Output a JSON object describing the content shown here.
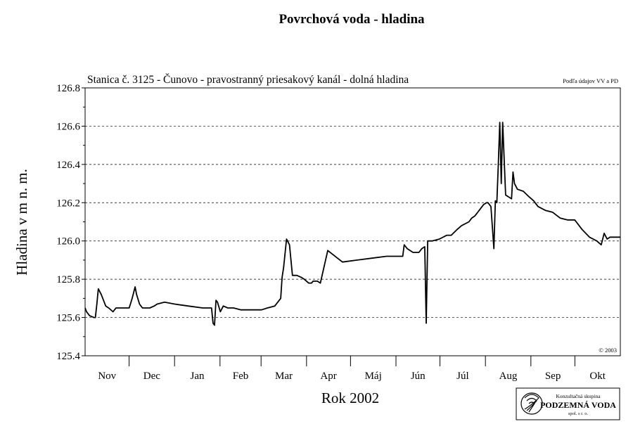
{
  "chart_data": {
    "type": "line",
    "title": "Povrchová voda - hladina",
    "subtitle": "Stanica č. 3125 - Čunovo - pravostranný priesakový kanál - dolná hladina",
    "source_note": "Podľa údajov VV a PD",
    "copyright": "© 2003",
    "xlabel": "Rok 2002",
    "ylabel": "Hladina v m n. m.",
    "ylim": [
      125.4,
      126.8
    ],
    "yticks": [
      "125.4",
      "125.6",
      "125.8",
      "126.0",
      "126.2",
      "126.4",
      "126.6",
      "126.8"
    ],
    "grid": "horizontal dashed",
    "legend": "none",
    "months": [
      "Nov",
      "Dec",
      "Jan",
      "Feb",
      "Mar",
      "Apr",
      "Máj",
      "Jún",
      "Júl",
      "Aug",
      "Sep",
      "Okt"
    ],
    "month_days": [
      30,
      31,
      31,
      28,
      31,
      30,
      31,
      30,
      31,
      31,
      30,
      31
    ],
    "x_start": "2001-11-01",
    "x_end": "2002-10-31",
    "series": [
      {
        "x": [
          "2001-11-01",
          "2001-11-02",
          "2001-11-04",
          "2001-11-07",
          "2001-11-08",
          "2001-11-09",
          "2001-11-10",
          "2001-11-12",
          "2001-11-15",
          "2001-11-17",
          "2001-11-20",
          "2001-11-22",
          "2001-11-25",
          "2001-11-28",
          "2001-12-01",
          "2001-12-03",
          "2001-12-05",
          "2001-12-06",
          "2001-12-08",
          "2001-12-10",
          "2001-12-12",
          "2001-12-15",
          "2001-12-18",
          "2001-12-20",
          "2001-12-25",
          "2002-01-01",
          "2002-01-10",
          "2002-01-20",
          "2002-01-26",
          "2002-01-27",
          "2002-01-28",
          "2002-01-29",
          "2002-01-30",
          "2002-02-01",
          "2002-02-03",
          "2002-02-06",
          "2002-02-10",
          "2002-02-15",
          "2002-02-25",
          "2002-03-01",
          "2002-03-05",
          "2002-03-10",
          "2002-03-12",
          "2002-03-14",
          "2002-03-15",
          "2002-03-16",
          "2002-03-18",
          "2002-03-20",
          "2002-03-22",
          "2002-03-25",
          "2002-03-28",
          "2002-03-30",
          "2002-04-02",
          "2002-04-04",
          "2002-04-05",
          "2002-04-08",
          "2002-04-10",
          "2002-04-15",
          "2002-04-25",
          "2002-05-05",
          "2002-05-15",
          "2002-05-25",
          "2002-06-05",
          "2002-06-06",
          "2002-06-08",
          "2002-06-12",
          "2002-06-16",
          "2002-06-18",
          "2002-06-20",
          "2002-06-21",
          "2002-06-22",
          "2002-06-25",
          "2002-06-30",
          "2002-07-05",
          "2002-07-08",
          "2002-07-12",
          "2002-07-15",
          "2002-07-20",
          "2002-07-22",
          "2002-07-24",
          "2002-07-26",
          "2002-07-28",
          "2002-07-30",
          "2002-08-01",
          "2002-08-02",
          "2002-08-04",
          "2002-08-06",
          "2002-08-07",
          "2002-08-08",
          "2002-08-09",
          "2002-08-10",
          "2002-08-11",
          "2002-08-12",
          "2002-08-14",
          "2002-08-18",
          "2002-08-19",
          "2002-08-20",
          "2002-08-22",
          "2002-08-26",
          "2002-08-30",
          "2002-09-02",
          "2002-09-05",
          "2002-09-10",
          "2002-09-15",
          "2002-09-20",
          "2002-09-25",
          "2002-09-30",
          "2002-10-01",
          "2002-10-05",
          "2002-10-10",
          "2002-10-15",
          "2002-10-18",
          "2002-10-20",
          "2002-10-22",
          "2002-10-24",
          "2002-10-26",
          "2002-10-28",
          "2002-10-31"
        ],
        "y": [
          125.65,
          125.63,
          125.61,
          125.6,
          125.6,
          125.67,
          125.75,
          125.72,
          125.66,
          125.65,
          125.63,
          125.65,
          125.65,
          125.65,
          125.65,
          125.7,
          125.76,
          125.72,
          125.67,
          125.65,
          125.65,
          125.65,
          125.66,
          125.67,
          125.68,
          125.67,
          125.66,
          125.65,
          125.65,
          125.57,
          125.56,
          125.69,
          125.68,
          125.63,
          125.66,
          125.65,
          125.65,
          125.64,
          125.64,
          125.64,
          125.65,
          125.66,
          125.68,
          125.7,
          125.81,
          125.86,
          126.01,
          125.98,
          125.82,
          125.82,
          125.81,
          125.8,
          125.78,
          125.78,
          125.79,
          125.79,
          125.78,
          125.95,
          125.89,
          125.9,
          125.91,
          125.92,
          125.92,
          125.98,
          125.96,
          125.94,
          125.94,
          125.96,
          125.97,
          125.57,
          126.0,
          126.0,
          126.01,
          126.03,
          126.03,
          126.06,
          126.08,
          126.1,
          126.12,
          126.13,
          126.15,
          126.17,
          126.19,
          126.2,
          126.2,
          126.18,
          125.96,
          126.21,
          126.2,
          126.4,
          126.62,
          126.3,
          126.62,
          126.24,
          126.22,
          126.36,
          126.3,
          126.27,
          126.26,
          126.23,
          126.21,
          126.18,
          126.16,
          126.15,
          126.12,
          126.11,
          126.11,
          126.1,
          126.06,
          126.02,
          126.0,
          125.98,
          126.04,
          126.01,
          126.02,
          126.02,
          126.02,
          126.02
        ]
      }
    ]
  },
  "logo": {
    "line1": "Konzultačná skupina",
    "line2": "PODZEMNÁ VODA",
    "line3": "spol. s r. o."
  }
}
